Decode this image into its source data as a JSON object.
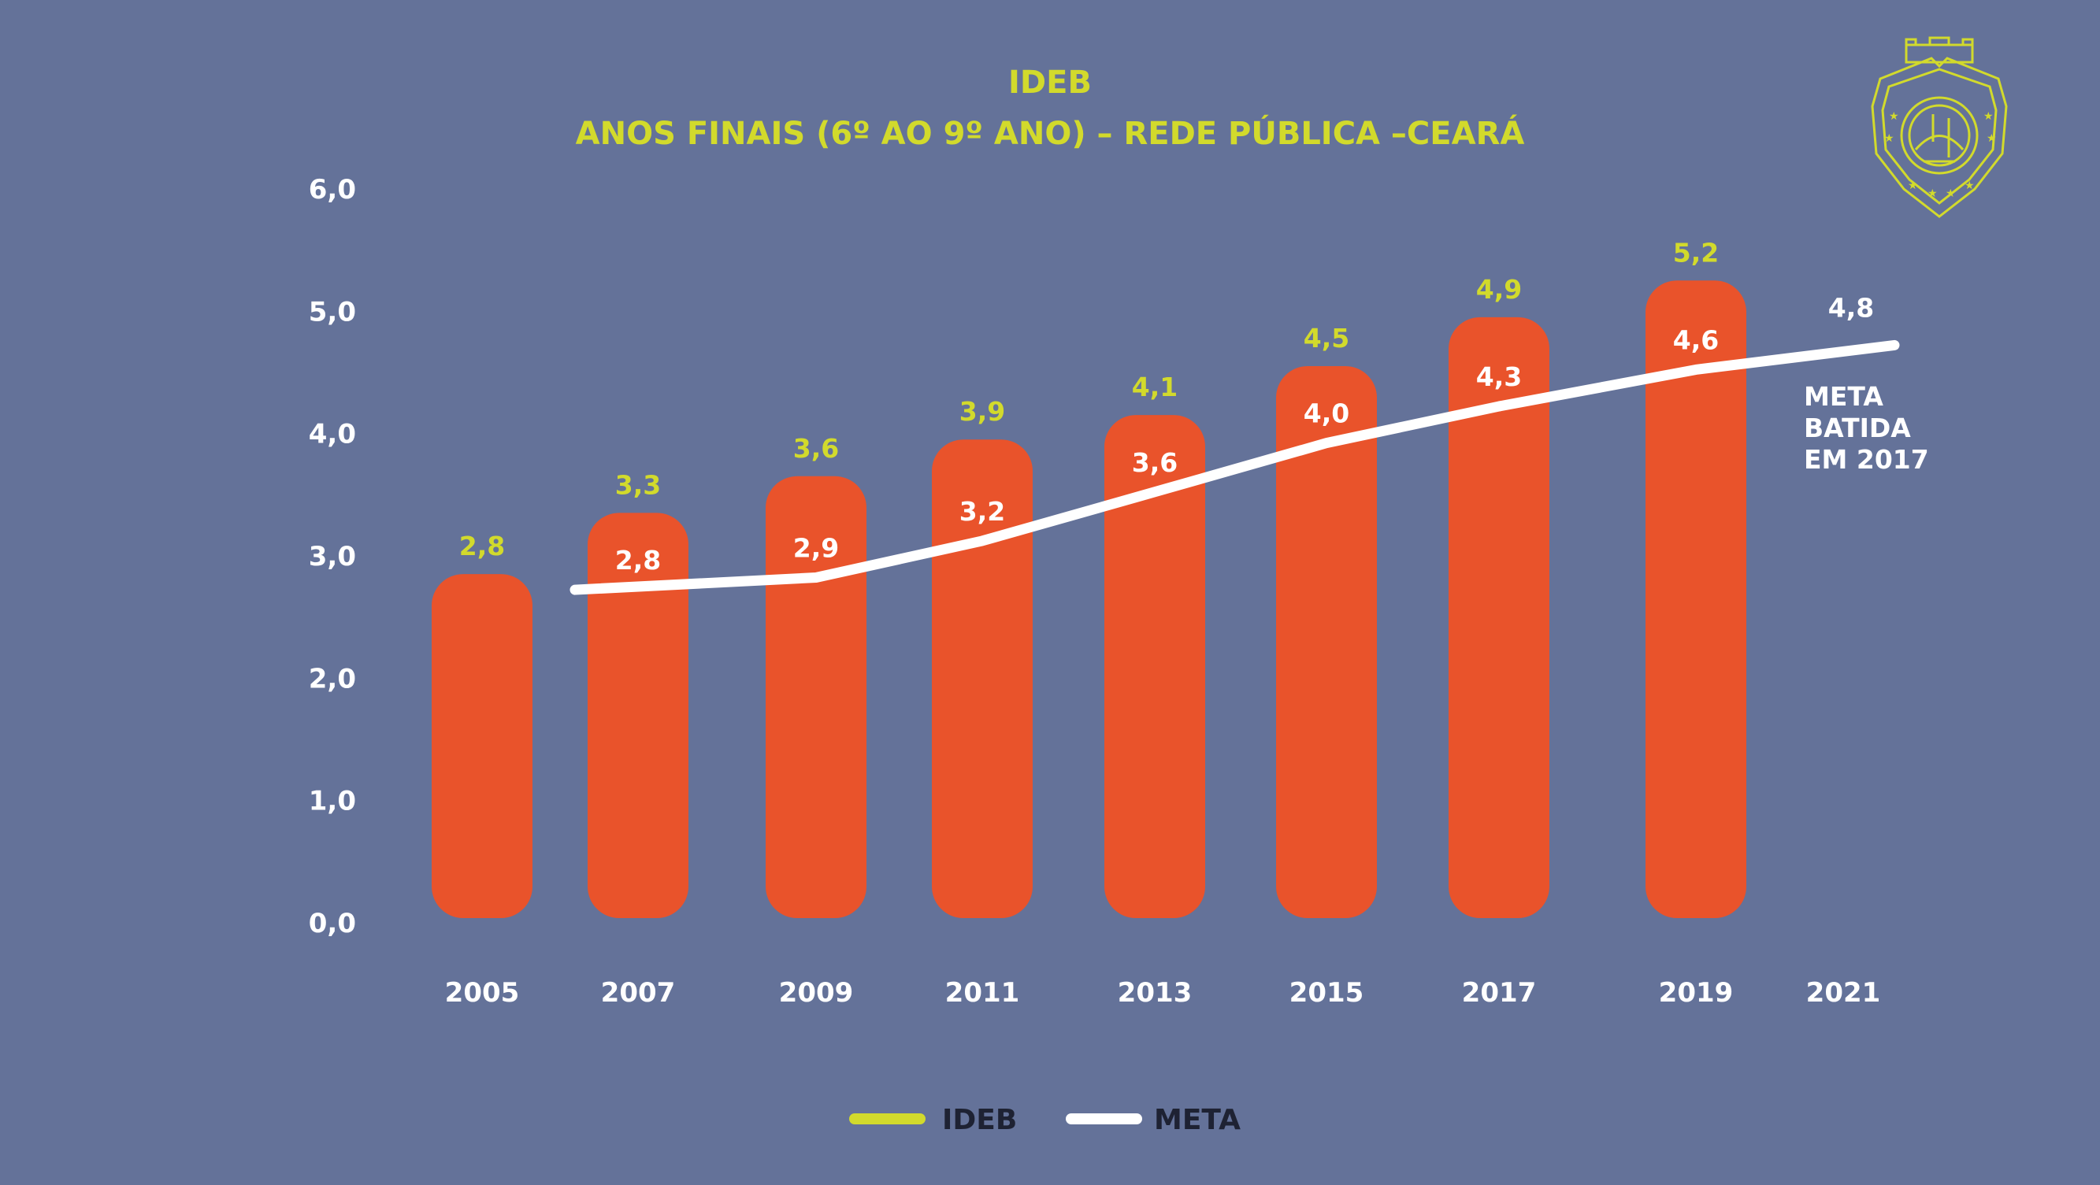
{
  "colors": {
    "background": "#647299",
    "bar": "#E9532B",
    "ideb_accent": "#D2DA2C",
    "meta_line": "#FFFFFF",
    "axis_text": "#FFFFFF",
    "legend_text": "#1E2233"
  },
  "chart_data": {
    "type": "bar",
    "title": "IDEB",
    "subtitle": "ANOS FINAIS (6º AO 9º ANO) – REDE PÚBLICA –CEARÁ",
    "xlabel": "",
    "ylabel": "",
    "ylim": [
      0,
      6
    ],
    "yticks": [
      "0,0",
      "1,0",
      "2,0",
      "3,0",
      "4,0",
      "5,0",
      "6,0"
    ],
    "categories": [
      "2005",
      "2007",
      "2009",
      "2011",
      "2013",
      "2015",
      "2017",
      "2019",
      "2021"
    ],
    "grid": false,
    "legend_position": "bottom-center",
    "series": [
      {
        "name": "IDEB",
        "kind": "bar",
        "values": [
          2.8,
          3.3,
          3.6,
          3.9,
          4.1,
          4.5,
          4.9,
          5.2,
          null
        ],
        "labels": [
          "2,8",
          "3,3",
          "3,6",
          "3,9",
          "4,1",
          "4,5",
          "4,9",
          "5,2",
          ""
        ]
      },
      {
        "name": "META",
        "kind": "line",
        "values": [
          null,
          2.8,
          2.9,
          3.2,
          3.6,
          4.0,
          4.3,
          4.6,
          4.8
        ],
        "labels": [
          "",
          "2,8",
          "2,9",
          "3,2",
          "3,6",
          "4,0",
          "4,3",
          "4,6",
          "4,8"
        ]
      }
    ],
    "annotations": [
      {
        "text_lines": [
          "META",
          "BATIDA",
          "EM 2017"
        ]
      }
    ]
  },
  "logo": {
    "icon": "ceara-coat-of-arms-icon"
  }
}
